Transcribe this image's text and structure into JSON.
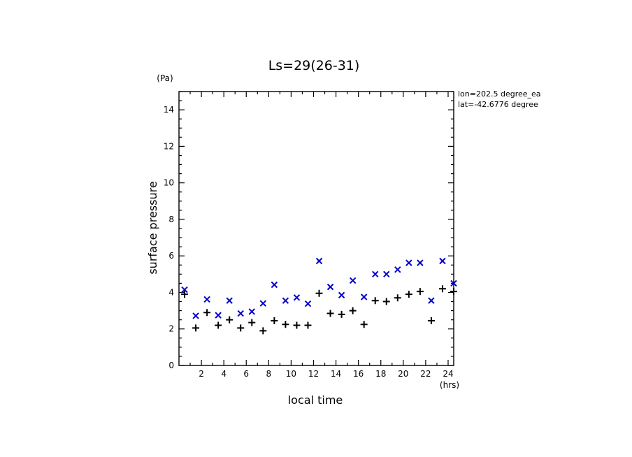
{
  "chart_data": {
    "type": "scatter",
    "title": "Ls=29(26-31)",
    "xlabel": "local time",
    "ylabel": "surface pressure",
    "x_unit": "(hrs)",
    "y_unit": "(Pa)",
    "annotations": [
      "lon=202.5 degree_ea",
      "lat=-42.6776 degree"
    ],
    "xlim": [
      0,
      24.5
    ],
    "ylim": [
      0,
      15
    ],
    "x_ticks": [
      2,
      4,
      6,
      8,
      10,
      12,
      14,
      16,
      18,
      20,
      22,
      24
    ],
    "y_ticks": [
      0,
      2,
      4,
      6,
      8,
      10,
      12,
      14
    ],
    "grid": false,
    "series": [
      {
        "marker": "x",
        "color": "#0000cc",
        "x": [
          0.5,
          1.5,
          2.5,
          3.5,
          4.5,
          5.5,
          6.5,
          7.5,
          8.5,
          9.5,
          10.5,
          11.5,
          12.5,
          13.5,
          14.5,
          15.5,
          16.5,
          17.5,
          18.5,
          19.5,
          20.5,
          21.5,
          22.5,
          23.5,
          24.5
        ],
        "values": [
          4.15,
          2.72,
          3.62,
          2.75,
          3.55,
          2.85,
          2.95,
          3.4,
          4.42,
          3.55,
          3.72,
          3.38,
          5.72,
          4.3,
          3.85,
          4.65,
          3.75,
          5.0,
          5.0,
          5.25,
          5.62,
          5.62,
          3.55,
          5.72,
          4.5
        ]
      },
      {
        "marker": "+",
        "color": "#000000",
        "x": [
          0.5,
          1.5,
          2.5,
          3.5,
          4.5,
          5.5,
          6.5,
          7.5,
          8.5,
          9.5,
          10.5,
          11.5,
          12.5,
          13.5,
          14.5,
          15.5,
          16.5,
          17.5,
          18.5,
          19.5,
          20.5,
          21.5,
          22.5,
          23.5,
          24.5
        ],
        "values": [
          3.9,
          2.05,
          2.9,
          2.2,
          2.5,
          2.05,
          2.35,
          1.9,
          2.45,
          2.25,
          2.2,
          2.2,
          3.95,
          2.85,
          2.8,
          3.0,
          2.25,
          3.55,
          3.5,
          3.7,
          3.9,
          4.05,
          2.45,
          4.2,
          4.05
        ]
      }
    ]
  }
}
